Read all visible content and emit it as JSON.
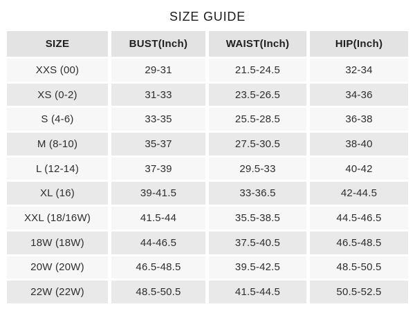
{
  "title": "SIZE GUIDE",
  "chart_data": {
    "type": "table",
    "title": "SIZE GUIDE",
    "columns": [
      "SIZE",
      "BUST(Inch)",
      "WAIST(Inch)",
      "HIP(Inch)"
    ],
    "rows": [
      [
        "XXS (00)",
        "29-31",
        "21.5-24.5",
        "32-34"
      ],
      [
        "XS (0-2)",
        "31-33",
        "23.5-26.5",
        "34-36"
      ],
      [
        "S (4-6)",
        "33-35",
        "25.5-28.5",
        "36-38"
      ],
      [
        "M (8-10)",
        "35-37",
        "27.5-30.5",
        "38-40"
      ],
      [
        "L (12-14)",
        "37-39",
        "29.5-33",
        "40-42"
      ],
      [
        "XL (16)",
        "39-41.5",
        "33-36.5",
        "42-44.5"
      ],
      [
        "XXL (18/16W)",
        "41.5-44",
        "35.5-38.5",
        "44.5-46.5"
      ],
      [
        "18W (18W)",
        "44-46.5",
        "37.5-40.5",
        "46.5-48.5"
      ],
      [
        "20W (20W)",
        "46.5-48.5",
        "39.5-42.5",
        "48.5-50.5"
      ],
      [
        "22W (22W)",
        "48.5-50.5",
        "41.5-44.5",
        "50.5-52.5"
      ]
    ],
    "layout": {
      "legend": "none",
      "grid": "off",
      "header_position": "top",
      "alternating_rows": true
    },
    "colors": {
      "page_bg": "#ffffff",
      "header_bg": "#e3e3e3",
      "row_bg": "#f7f7f7",
      "row_alt_bg": "#e9e9e9",
      "text": "#2d2d2d"
    }
  }
}
